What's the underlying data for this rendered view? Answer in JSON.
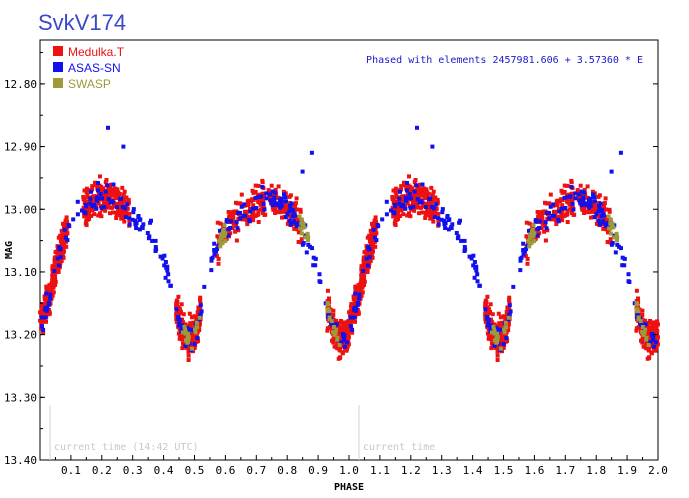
{
  "chart_data": {
    "type": "scatter",
    "title": "SvkV174",
    "xlabel": "PHASE",
    "ylabel": "MAG",
    "xlim": [
      0.0,
      2.0
    ],
    "ylim": [
      13.4,
      12.73
    ],
    "y_inverted": true,
    "x_ticks": [
      0.1,
      0.2,
      0.3,
      0.4,
      0.5,
      0.6,
      0.7,
      0.8,
      0.9,
      1.0,
      1.1,
      1.2,
      1.3,
      1.4,
      1.5,
      1.6,
      1.7,
      1.8,
      1.9,
      2.0
    ],
    "x_tick_labels": [
      "0.1",
      "0.2",
      "0.3",
      "0.4",
      "0.5",
      "0.6",
      "0.7",
      "0.8",
      "0.9",
      "1.0",
      "1.1",
      "1.2",
      "1.3",
      "1.4",
      "1.5",
      "1.6",
      "1.7",
      "1.8",
      "1.9",
      "2.0"
    ],
    "y_ticks": [
      12.8,
      12.9,
      13.0,
      13.1,
      13.2,
      13.3,
      13.4
    ],
    "y_tick_labels": [
      "12.80",
      "12.90",
      "13.00",
      "13.10",
      "13.20",
      "13.30",
      "13.40"
    ],
    "annotation": "Phased with elements 2457981.606 + 3.57360 * E",
    "current_time_labels": [
      "current time (14:42 UTC)",
      "current time"
    ],
    "current_time_phases": [
      0.0,
      1.0
    ],
    "legend_position": "top-left",
    "series": [
      {
        "name": "Medulka.T",
        "color": "#ee1111",
        "light_curve_phase": [
          0.0,
          0.02,
          0.05,
          0.08,
          0.12,
          0.16,
          0.2,
          0.24,
          0.28,
          0.32,
          0.36,
          0.4,
          0.43,
          0.45,
          0.47,
          0.49,
          0.51,
          0.53,
          0.56,
          0.59,
          0.62,
          0.66,
          0.7,
          0.74,
          0.78,
          0.82,
          0.86,
          0.89,
          0.92,
          0.95,
          0.97,
          1.0
        ],
        "light_curve_mag": [
          13.18,
          13.16,
          13.1,
          13.04,
          13.01,
          12.99,
          12.98,
          12.98,
          13.0,
          13.02,
          13.04,
          13.08,
          13.14,
          13.18,
          13.2,
          13.21,
          13.19,
          13.13,
          13.07,
          13.04,
          13.02,
          13.01,
          12.99,
          12.98,
          12.99,
          13.01,
          13.04,
          13.08,
          13.14,
          13.19,
          13.21,
          13.2
        ],
        "scatter": 0.022,
        "phase_ranges": [
          [
            0.0,
            0.09
          ],
          [
            0.14,
            0.29
          ],
          [
            0.44,
            0.52
          ],
          [
            0.57,
            0.85
          ],
          [
            0.93,
            1.0
          ]
        ]
      },
      {
        "name": "ASAS-SN",
        "color": "#1111ee",
        "light_curve_phase": [
          0.0,
          0.02,
          0.05,
          0.08,
          0.12,
          0.16,
          0.2,
          0.24,
          0.28,
          0.32,
          0.36,
          0.4,
          0.43,
          0.45,
          0.47,
          0.49,
          0.51,
          0.53,
          0.56,
          0.59,
          0.62,
          0.66,
          0.7,
          0.74,
          0.78,
          0.82,
          0.86,
          0.89,
          0.92,
          0.95,
          0.97,
          1.0
        ],
        "light_curve_mag": [
          13.18,
          13.16,
          13.1,
          13.04,
          13.01,
          12.99,
          12.98,
          12.98,
          13.0,
          13.02,
          13.04,
          13.08,
          13.14,
          13.18,
          13.2,
          13.21,
          13.19,
          13.13,
          13.07,
          13.04,
          13.02,
          13.01,
          12.99,
          12.98,
          12.99,
          13.01,
          13.04,
          13.08,
          13.14,
          13.19,
          13.21,
          13.2
        ],
        "scatter": 0.015,
        "phase_ranges": [
          [
            0.0,
            1.0
          ]
        ],
        "outliers": [
          [
            0.22,
            12.87
          ],
          [
            0.27,
            12.9
          ],
          [
            0.88,
            12.91
          ],
          [
            0.85,
            12.94
          ]
        ]
      },
      {
        "name": "SWASP",
        "color": "#9e9a3a",
        "light_curve_phase": [
          0.0,
          0.02,
          0.05,
          0.08,
          0.12,
          0.16,
          0.2,
          0.24,
          0.28,
          0.32,
          0.36,
          0.4,
          0.43,
          0.45,
          0.47,
          0.49,
          0.51,
          0.53,
          0.56,
          0.59,
          0.62,
          0.66,
          0.7,
          0.74,
          0.78,
          0.82,
          0.86,
          0.89,
          0.92,
          0.95,
          0.97,
          1.0
        ],
        "light_curve_mag": [
          13.18,
          13.16,
          13.1,
          13.04,
          13.01,
          12.99,
          12.98,
          12.98,
          13.0,
          13.02,
          13.04,
          13.08,
          13.14,
          13.18,
          13.2,
          13.21,
          13.19,
          13.13,
          13.07,
          13.04,
          13.02,
          13.01,
          12.99,
          12.98,
          12.99,
          13.01,
          13.04,
          13.08,
          13.14,
          13.19,
          13.21,
          13.2
        ],
        "scatter": 0.012,
        "phase_ranges": [
          [
            0.46,
            0.52
          ],
          [
            0.58,
            0.6
          ],
          [
            0.84,
            0.87
          ],
          [
            0.93,
            0.97
          ]
        ]
      }
    ]
  }
}
